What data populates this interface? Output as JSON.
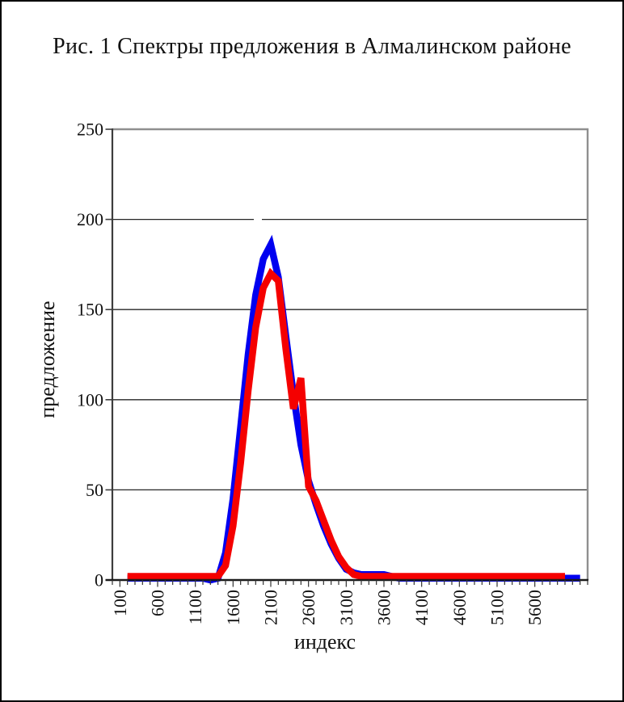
{
  "chart_data": {
    "type": "line",
    "title": "Рис. 1 Спектры предложения в Алмалинском районе",
    "xlabel": "индекс",
    "ylabel": "предложение",
    "xlim": [
      0,
      6300
    ],
    "ylim": [
      0,
      250
    ],
    "grid": "horizontal-solid",
    "legend": "none",
    "y_ticks": [
      0,
      50,
      100,
      150,
      200,
      250
    ],
    "x_tick_label_values": [
      100,
      600,
      1100,
      1600,
      2100,
      2600,
      3100,
      3600,
      4100,
      4600,
      5100,
      5600
    ],
    "x_tick_labels": [
      "100",
      "600",
      "1100",
      "1600",
      "2100",
      "2600",
      "3100",
      "3600",
      "4100",
      "4600",
      "5100",
      "5600"
    ],
    "x_minor_tick_step": 100,
    "x_start": 200,
    "x_step": 100,
    "series": [
      {
        "name": "blue",
        "color": "#0000f0",
        "values": [
          1,
          1,
          1,
          1,
          1,
          1,
          1,
          1,
          1,
          1,
          1,
          0,
          1,
          15,
          45,
          85,
          125,
          158,
          178,
          186,
          168,
          135,
          103,
          75,
          55,
          42,
          30,
          20,
          12,
          6,
          4,
          3,
          3,
          3,
          3,
          2,
          1,
          1,
          1,
          1,
          1,
          1,
          1,
          1,
          1,
          1,
          1,
          1,
          1,
          1,
          1,
          1,
          1,
          1,
          1,
          1,
          1,
          1,
          1,
          1,
          1
        ]
      },
      {
        "name": "red",
        "color": "#f50000",
        "values": [
          2,
          2,
          2,
          2,
          2,
          2,
          2,
          2,
          2,
          2,
          2,
          2,
          2,
          8,
          30,
          65,
          105,
          140,
          162,
          170,
          166,
          128,
          95,
          112,
          52,
          44,
          33,
          22,
          13,
          7,
          3,
          2,
          2,
          2,
          2,
          2,
          2,
          2,
          2,
          2,
          2,
          2,
          2,
          2,
          2,
          2,
          2,
          2,
          2,
          2,
          2,
          2,
          2,
          2,
          2,
          2,
          2,
          2,
          2
        ]
      }
    ]
  }
}
